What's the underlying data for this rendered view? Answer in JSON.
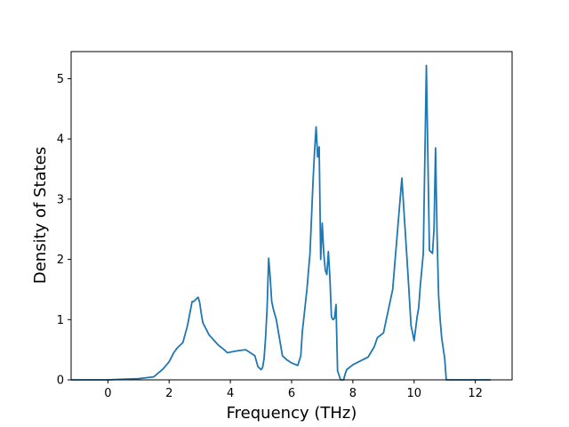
{
  "chart_data": {
    "type": "line",
    "title": "",
    "xlabel": "Frequency (THz)",
    "ylabel": "Density of States",
    "xlim": [
      -1.2,
      13.2
    ],
    "ylim": [
      0,
      5.45
    ],
    "xticks": [
      0,
      2,
      4,
      6,
      8,
      10,
      12
    ],
    "yticks": [
      0,
      1,
      2,
      3,
      4,
      5
    ],
    "grid": false,
    "color": "#1f77b4",
    "series": [
      {
        "name": "",
        "x": [
          -1.2,
          -0.5,
          0.0,
          0.5,
          1.0,
          1.5,
          1.8,
          2.0,
          2.15,
          2.25,
          2.45,
          2.6,
          2.75,
          2.8,
          2.9,
          2.95,
          3.0,
          3.05,
          3.1,
          3.3,
          3.6,
          3.8,
          3.9,
          4.2,
          4.5,
          4.8,
          4.9,
          5.0,
          5.05,
          5.1,
          5.15,
          5.2,
          5.25,
          5.3,
          5.35,
          5.4,
          5.5,
          5.55,
          5.7,
          5.85,
          6.0,
          6.2,
          6.3,
          6.35,
          6.5,
          6.6,
          6.7,
          6.75,
          6.8,
          6.85,
          6.9,
          6.95,
          7.0,
          7.05,
          7.1,
          7.15,
          7.2,
          7.25,
          7.3,
          7.35,
          7.4,
          7.45,
          7.5,
          7.6,
          7.65,
          7.7,
          7.75,
          7.8,
          8.0,
          8.5,
          8.7,
          8.8,
          9.0,
          9.3,
          9.6,
          9.8,
          9.9,
          9.95,
          10.0,
          10.05,
          10.1,
          10.15,
          10.2,
          10.3,
          10.4,
          10.5,
          10.6,
          10.65,
          10.7,
          10.75,
          10.8,
          10.85,
          10.9,
          11.0,
          11.05,
          11.1,
          11.15,
          11.2,
          11.3,
          11.4,
          11.5,
          11.6,
          12.0,
          12.5
        ],
        "y": [
          0.0,
          0.0,
          0.0,
          0.01,
          0.02,
          0.05,
          0.18,
          0.3,
          0.45,
          0.52,
          0.62,
          0.9,
          1.3,
          1.3,
          1.35,
          1.37,
          1.28,
          1.1,
          0.95,
          0.75,
          0.58,
          0.5,
          0.45,
          0.48,
          0.5,
          0.4,
          0.22,
          0.17,
          0.2,
          0.35,
          0.7,
          1.2,
          2.02,
          1.7,
          1.3,
          1.18,
          1.0,
          0.85,
          0.4,
          0.33,
          0.28,
          0.24,
          0.4,
          0.8,
          1.5,
          2.1,
          3.3,
          3.8,
          4.2,
          3.7,
          3.87,
          2.0,
          2.6,
          2.1,
          1.82,
          1.75,
          2.13,
          1.7,
          1.05,
          1.0,
          1.02,
          1.25,
          0.15,
          0.0,
          0.0,
          0.0,
          0.1,
          0.17,
          0.25,
          0.38,
          0.55,
          0.7,
          0.78,
          1.5,
          3.35,
          1.75,
          0.9,
          0.78,
          0.65,
          0.85,
          1.05,
          1.2,
          1.55,
          2.1,
          5.22,
          2.15,
          2.1,
          2.5,
          3.85,
          2.4,
          1.4,
          1.0,
          0.7,
          0.35,
          0.0,
          0.0,
          0.0,
          0.0,
          0.0,
          0.0,
          0.0,
          0.0,
          0.0,
          0.0
        ]
      }
    ]
  }
}
